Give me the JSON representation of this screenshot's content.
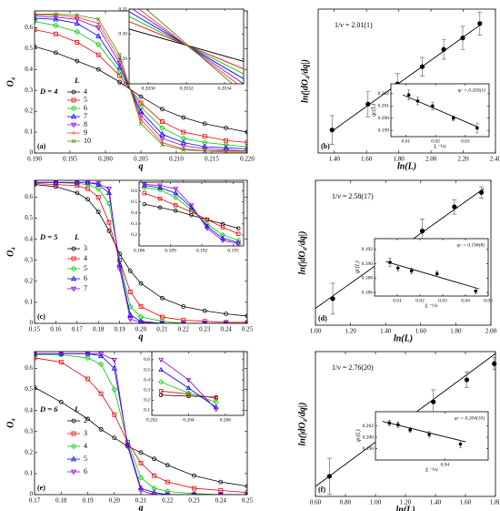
{
  "chart_data": [
    {
      "type": "line",
      "panel": "(a)",
      "xlabel": "q",
      "ylabel": "O₄",
      "dimension_label": "D = 4",
      "legend_title": "L",
      "markers": true,
      "xlim": [
        0.19,
        0.22
      ],
      "xticks": [
        {
          "value": 0.19,
          "label": "0.190"
        },
        0.195,
        {
          "value": 0.2,
          "label": "0.200"
        },
        0.205,
        {
          "value": 0.21,
          "label": "0.210"
        },
        0.215,
        {
          "value": 0.22,
          "label": "0.220"
        }
      ],
      "ylim": [
        0,
        0.68
      ],
      "yticks": [
        0,
        0.1,
        0.2,
        0.3,
        0.4,
        0.5,
        0.6
      ],
      "x": [
        0.19,
        0.193,
        0.196,
        0.199,
        0.202,
        0.205,
        0.208,
        0.211,
        0.214,
        0.217,
        0.22
      ],
      "series": [
        {
          "name": "4",
          "color": "#000000",
          "marker": "circle",
          "values": [
            0.51,
            0.48,
            0.44,
            0.4,
            0.34,
            0.27,
            0.21,
            0.17,
            0.14,
            0.12,
            0.1
          ]
        },
        {
          "name": "5",
          "color": "#ee0000",
          "marker": "square",
          "values": [
            0.59,
            0.57,
            0.53,
            0.47,
            0.37,
            0.24,
            0.15,
            0.1,
            0.08,
            0.06,
            0.05
          ]
        },
        {
          "name": "6",
          "color": "#00cc00",
          "marker": "diamond",
          "values": [
            0.63,
            0.61,
            0.58,
            0.52,
            0.39,
            0.22,
            0.12,
            0.07,
            0.05,
            0.04,
            0.03
          ]
        },
        {
          "name": "7",
          "color": "#0000ff",
          "marker": "triangle-up",
          "values": [
            0.645,
            0.64,
            0.62,
            0.56,
            0.41,
            0.2,
            0.09,
            0.05,
            0.03,
            0.025,
            0.02
          ]
        },
        {
          "name": "8",
          "color": "#8800cc",
          "marker": "triangle-down",
          "values": [
            0.655,
            0.65,
            0.64,
            0.6,
            0.43,
            0.18,
            0.07,
            0.035,
            0.02,
            0.015,
            0.01
          ]
        },
        {
          "name": "9",
          "color": "#ff3333",
          "marker": "plus",
          "values": [
            0.66,
            0.66,
            0.65,
            0.62,
            0.45,
            0.16,
            0.05,
            0.02,
            0.01,
            0.01,
            0.01
          ]
        },
        {
          "name": "10",
          "color": "#558800",
          "marker": "cross",
          "values": [
            0.665,
            0.665,
            0.66,
            0.64,
            0.47,
            0.14,
            0.04,
            0.015,
            0.01,
            0.005,
            0.005
          ]
        }
      ]
    },
    {
      "type": "line",
      "markers": false,
      "xlim": [
        0.2029,
        0.2035
      ],
      "xticks": [
        {
          "value": 0.203,
          "label": "0.2030"
        },
        {
          "value": 0.2032,
          "label": "0.2032"
        },
        {
          "value": 0.2034,
          "label": "0.2034"
        }
      ],
      "ylim": [
        0.28,
        0.31
      ],
      "yticks": [
        0.28,
        0.29,
        {
          "value": 0.3,
          "label": "0.30"
        },
        0.31
      ],
      "x": [
        0.2029,
        0.2035
      ],
      "series": [
        {
          "color": "#000000",
          "values": [
            0.302,
            0.289
          ]
        },
        {
          "color": "#ee0000",
          "values": [
            0.305,
            0.286
          ]
        },
        {
          "color": "#00cc00",
          "values": [
            0.307,
            0.284
          ]
        },
        {
          "color": "#0000ff",
          "values": [
            0.309,
            0.282
          ]
        },
        {
          "color": "#8800cc",
          "values": [
            0.311,
            0.28
          ]
        },
        {
          "color": "#ff3333",
          "values": [
            0.313,
            0.278
          ]
        },
        {
          "color": "#558800",
          "values": [
            0.316,
            0.276
          ]
        }
      ]
    },
    {
      "type": "scatter",
      "panel": "(b)",
      "xlabel": "ln(L)",
      "ylabel": "ln(|dO₄/dq|)",
      "annotation": "1/ν = 2.01(1)",
      "xlim": [
        1.3,
        2.4
      ],
      "xticks": [
        {
          "value": 1.4,
          "label": "1.40"
        },
        {
          "value": 1.6,
          "label": "1.60"
        },
        {
          "value": 1.8,
          "label": "1.80"
        },
        {
          "value": 2.0,
          "label": "2.00"
        },
        {
          "value": 2.2,
          "label": "2.20"
        },
        {
          "value": 2.4,
          "label": "2.40"
        }
      ],
      "ylim": [
        2.5,
        5.0
      ],
      "x": [
        1.386,
        1.609,
        1.792,
        1.946,
        2.079,
        2.197,
        2.303
      ],
      "values": [
        2.9,
        3.35,
        3.7,
        4.0,
        4.3,
        4.5,
        4.75
      ],
      "errors": [
        0.25,
        0.22,
        0.18,
        0.16,
        0.17,
        0.2,
        0.2
      ],
      "fit": {
        "x": [
          1.386,
          2.303
        ],
        "values": [
          2.88,
          4.72
        ]
      }
    },
    {
      "type": "scatter",
      "xlabel": "L⁻¹/ν",
      "ylabel": "qc(L)",
      "annotation": "qc = 0.203(1)",
      "xlim": [
        0.005,
        0.038
      ],
      "xticks": [
        0.01,
        0.02,
        0.03
      ],
      "ylim": [
        0.1985,
        0.2028
      ],
      "yticks": [
        0.199,
        {
          "value": 0.2,
          "label": "0.200"
        },
        0.201,
        0.202
      ],
      "x": [
        0.011,
        0.014,
        0.019,
        0.026,
        0.034
      ],
      "values": [
        0.2019,
        0.2014,
        0.201,
        0.2,
        0.1992
      ],
      "errors": [
        0.0004,
        0.0003,
        0.0003,
        0.0002,
        0.0004
      ],
      "fit": {
        "x": [
          0.009,
          0.034
        ],
        "values": [
          0.2019,
          0.1993
        ]
      }
    },
    {
      "type": "line",
      "panel": "(c)",
      "xlabel": "q",
      "ylabel": "O₄",
      "dimension_label": "D = 5",
      "legend_title": "L",
      "markers": true,
      "xlim": [
        0.15,
        0.25
      ],
      "xticks": [
        0.15,
        0.16,
        0.17,
        0.18,
        0.19,
        {
          "value": 0.2,
          "label": "0.20"
        },
        0.21,
        0.22,
        0.23,
        0.24,
        0.25
      ],
      "ylim": [
        0,
        0.68
      ],
      "yticks": [
        0,
        0.1,
        0.2,
        0.3,
        0.4,
        0.5,
        0.6
      ],
      "x": [
        0.15,
        0.16,
        0.17,
        0.175,
        0.18,
        0.185,
        0.19,
        0.195,
        0.2,
        0.21,
        0.22,
        0.23,
        0.24,
        0.25
      ],
      "series": [
        {
          "name": "3",
          "color": "#000000",
          "marker": "circle",
          "values": [
            0.66,
            0.65,
            0.62,
            0.59,
            0.53,
            0.44,
            0.33,
            0.25,
            0.19,
            0.12,
            0.08,
            0.06,
            0.045,
            0.035
          ]
        },
        {
          "name": "4",
          "color": "#ee0000",
          "marker": "square",
          "values": [
            0.665,
            0.66,
            0.655,
            0.64,
            0.6,
            0.48,
            0.3,
            0.15,
            0.08,
            0.03,
            0.015,
            0.01,
            0.005,
            0.005
          ]
        },
        {
          "name": "5",
          "color": "#00cc00",
          "marker": "diamond",
          "values": [
            0.67,
            0.67,
            0.665,
            0.66,
            0.64,
            0.57,
            0.3,
            0.08,
            0.03,
            0.01,
            0,
            0,
            0,
            0
          ]
        },
        {
          "name": "6",
          "color": "#0000ff",
          "marker": "triangle-up",
          "values": [
            0.67,
            0.67,
            0.67,
            0.67,
            0.66,
            0.62,
            0.28,
            0.04,
            0.01,
            0,
            0,
            0,
            0,
            0
          ]
        },
        {
          "name": "7",
          "color": "#8800cc",
          "marker": "triangle-down",
          "values": [
            0.67,
            0.67,
            0.67,
            0.67,
            0.665,
            0.64,
            0.26,
            0.02,
            0.005,
            0,
            0,
            0,
            0,
            0
          ]
        }
      ]
    },
    {
      "type": "line",
      "markers": true,
      "xlim": [
        0.186,
        0.196
      ],
      "xticks": [
        0.186,
        0.189,
        0.192,
        0.195
      ],
      "ylim": [
        0.1,
        0.68
      ],
      "yticks": [
        0.2,
        0.3,
        0.4,
        0.5,
        0.6
      ],
      "x": [
        0.1865,
        0.188,
        0.1895,
        0.191,
        0.1925,
        0.194,
        0.1955
      ],
      "series": [
        {
          "color": "#000000",
          "marker": "circle",
          "values": [
            0.48,
            0.45,
            0.42,
            0.38,
            0.34,
            0.3,
            0.26
          ]
        },
        {
          "color": "#ee0000",
          "marker": "square",
          "values": [
            0.58,
            0.53,
            0.47,
            0.41,
            0.34,
            0.27,
            0.21
          ]
        },
        {
          "color": "#00cc00",
          "marker": "diamond",
          "values": [
            0.63,
            0.61,
            0.54,
            0.43,
            0.3,
            0.2,
            0.15
          ]
        },
        {
          "color": "#0000ff",
          "marker": "triangle-up",
          "values": [
            0.65,
            0.63,
            0.58,
            0.45,
            0.28,
            0.17,
            0.13
          ]
        },
        {
          "color": "#8800cc",
          "marker": "triangle-down",
          "values": [
            0.66,
            0.65,
            0.62,
            0.47,
            0.26,
            0.15,
            0.12
          ]
        }
      ]
    },
    {
      "type": "scatter",
      "panel": "(d)",
      "xlabel": "ln(L)",
      "ylabel": "ln(|dO₄/dq|)",
      "annotation": "1/ν = 2.58(17)",
      "xlim": [
        1.0,
        2.0
      ],
      "xticks": [
        {
          "value": 1.0,
          "label": "1.00"
        },
        {
          "value": 1.2,
          "label": "1.20"
        },
        {
          "value": 1.4,
          "label": "1.40"
        },
        {
          "value": 1.6,
          "label": "1.60"
        },
        {
          "value": 1.8,
          "label": "1.80"
        },
        {
          "value": 2.0,
          "label": "2.00"
        }
      ],
      "ylim": [
        2.6,
        5.6
      ],
      "x": [
        1.0986,
        1.386,
        1.609,
        1.792,
        1.946
      ],
      "values": [
        3.15,
        4.1,
        4.55,
        5.05,
        5.35
      ],
      "errors": [
        0.32,
        0.25,
        0.25,
        0.15,
        0.12
      ],
      "fit": {
        "x": [
          1.0,
          1.96
        ],
        "values": [
          2.95,
          5.43
        ]
      }
    },
    {
      "type": "scatter",
      "xlabel": "L⁻¹/ν",
      "ylabel": "qc(L)",
      "annotation": "qc = 0.194(8)",
      "xlim": [
        0,
        0.05
      ],
      "xticks": [
        0.01,
        0.02,
        0.03,
        0.04,
        0.05
      ],
      "ylim": [
        0.1855,
        0.1935
      ],
      "yticks": [
        0.186,
        0.188,
        {
          "value": 0.19,
          "label": "0.190"
        },
        0.192
      ],
      "x": [
        0.0068,
        0.0103,
        0.0163,
        0.0275,
        0.0445
      ],
      "values": [
        0.1902,
        0.1894,
        0.189,
        0.1886,
        0.1862
      ],
      "errors": [
        0.0006,
        0.0004,
        0.0004,
        0.0004,
        0.0004
      ],
      "fit": {
        "x": [
          0.005,
          0.046
        ],
        "values": [
          0.1903,
          0.1865
        ]
      }
    },
    {
      "type": "line",
      "panel": "(e)",
      "xlabel": "q",
      "ylabel": "O₄",
      "dimension_label": "D = 6",
      "legend_title": "L",
      "markers": true,
      "xlim": [
        0.17,
        0.25
      ],
      "xticks": [
        0.17,
        0.18,
        0.19,
        {
          "value": 0.2,
          "label": "0.20"
        },
        0.21,
        0.22,
        0.23,
        0.24,
        0.25
      ],
      "ylim": [
        0,
        0.68
      ],
      "yticks": [
        0,
        0.1,
        0.2,
        0.3,
        0.4,
        0.5,
        0.6
      ],
      "x": [
        0.17,
        0.18,
        0.19,
        0.195,
        0.2,
        0.205,
        0.21,
        0.215,
        0.22,
        0.23,
        0.24,
        0.25
      ],
      "series": [
        {
          "name": "2",
          "color": "#000000",
          "marker": "circle",
          "values": [
            0.51,
            0.44,
            0.36,
            0.31,
            0.27,
            0.23,
            0.2,
            0.17,
            0.14,
            0.09,
            0.06,
            0.04
          ]
        },
        {
          "name": "3",
          "color": "#ee0000",
          "marker": "square",
          "values": [
            0.65,
            0.63,
            0.55,
            0.48,
            0.38,
            0.25,
            0.15,
            0.09,
            0.06,
            0.03,
            0.02,
            0.01
          ]
        },
        {
          "name": "4",
          "color": "#00cc00",
          "marker": "diamond",
          "values": [
            0.665,
            0.665,
            0.65,
            0.62,
            0.5,
            0.25,
            0.08,
            0.03,
            0.015,
            0.005,
            0,
            0
          ]
        },
        {
          "name": "5",
          "color": "#0000ff",
          "marker": "triangle-up",
          "values": [
            0.67,
            0.67,
            0.67,
            0.66,
            0.6,
            0.24,
            0.03,
            0.01,
            0,
            0,
            0,
            0
          ]
        },
        {
          "name": "6",
          "color": "#8800cc",
          "marker": "triangle-down",
          "values": [
            0.67,
            0.67,
            0.67,
            0.67,
            0.64,
            0.23,
            0.02,
            0,
            0,
            0,
            0,
            0
          ]
        }
      ]
    },
    {
      "type": "line",
      "markers": true,
      "xlim": [
        0.202,
        0.207
      ],
      "xticks": [
        0.202,
        0.204,
        0.206
      ],
      "ylim": [
        0.05,
        0.68
      ],
      "yticks": [
        0.1,
        0.2,
        0.3,
        0.4,
        0.5,
        0.6
      ],
      "x": [
        0.2025,
        0.204,
        0.2055
      ],
      "series": [
        {
          "color": "#000000",
          "marker": "circle",
          "values": [
            0.25,
            0.24,
            0.23
          ]
        },
        {
          "color": "#ee0000",
          "marker": "square",
          "values": [
            0.29,
            0.26,
            0.22
          ]
        },
        {
          "color": "#00cc00",
          "marker": "diamond",
          "values": [
            0.38,
            0.27,
            0.18
          ]
        },
        {
          "color": "#0000ff",
          "marker": "triangle-up",
          "values": [
            0.5,
            0.32,
            0.13
          ]
        },
        {
          "color": "#8800cc",
          "marker": "triangle-down",
          "values": [
            0.6,
            0.4,
            0.11
          ]
        }
      ]
    },
    {
      "type": "scatter",
      "panel": "(f)",
      "xlabel": "ln(L)",
      "ylabel": "ln(|dO₄/dq|)",
      "annotation": "1/ν = 2.76(20)",
      "xlim": [
        0.6,
        1.8
      ],
      "xticks": [
        {
          "value": 0.6,
          "label": "0.60"
        },
        {
          "value": 0.8,
          "label": "0.80"
        },
        {
          "value": 1.0,
          "label": "1.00"
        },
        {
          "value": 1.2,
          "label": "1.20"
        },
        {
          "value": 1.4,
          "label": "1.40"
        },
        {
          "value": 1.6,
          "label": "1.60"
        },
        {
          "value": 1.8,
          "label": "1.80"
        }
      ],
      "ylim": [
        2.0,
        5.6
      ],
      "x": [
        0.693,
        1.0986,
        1.386,
        1.609,
        1.792
      ],
      "values": [
        2.5,
        3.4,
        4.35,
        4.9,
        5.3
      ],
      "errors": [
        0.45,
        0.35,
        0.3,
        0.2,
        0.15
      ],
      "fit": {
        "x": [
          0.6,
          1.8
        ],
        "values": [
          2.25,
          5.55
        ]
      }
    },
    {
      "type": "scatter",
      "xlabel": "L⁻¹/ν",
      "ylabel": "qc(L)",
      "annotation": "qc = 0.204(10)",
      "xlim": [
        0,
        0.065
      ],
      "xticks": [
        0.04
      ],
      "ylim": [
        0.196,
        0.2045
      ],
      "yticks": [
        0.198,
        {
          "value": 0.2,
          "label": "0.200"
        },
        0.202
      ],
      "x": [
        0.008,
        0.013,
        0.02,
        0.031,
        0.049
      ],
      "values": [
        0.2025,
        0.2022,
        0.2013,
        0.2005,
        0.1988
      ],
      "errors": [
        0.0005,
        0.0005,
        0.0004,
        0.0005,
        0.0006
      ],
      "fit": {
        "x": [
          0.004,
          0.052
        ],
        "values": [
          0.2028,
          0.1992
        ]
      }
    }
  ]
}
